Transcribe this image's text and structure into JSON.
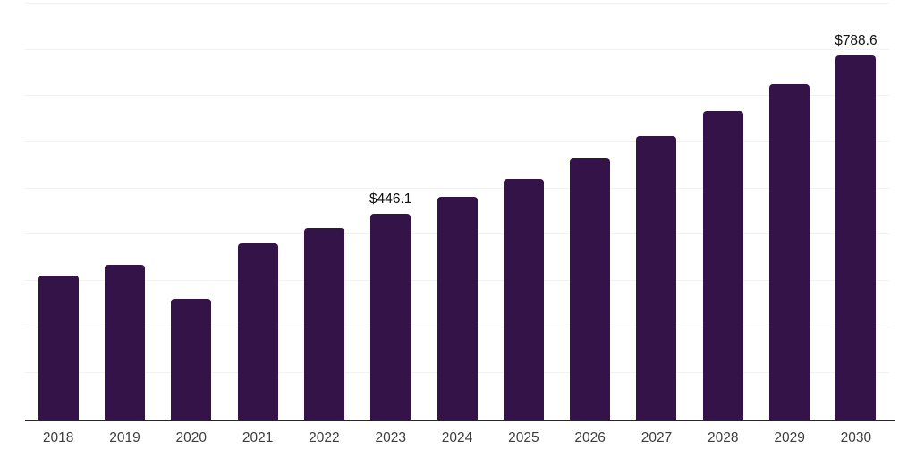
{
  "chart_data": {
    "type": "bar",
    "title": "",
    "xlabel": "",
    "ylabel": "",
    "categories": [
      "2018",
      "2019",
      "2020",
      "2021",
      "2022",
      "2023",
      "2024",
      "2025",
      "2026",
      "2027",
      "2028",
      "2029",
      "2030"
    ],
    "values": [
      310.9,
      335.8,
      261.0,
      381.8,
      414.5,
      446.1,
      481.6,
      520.2,
      566.0,
      614.1,
      667.7,
      725.3,
      788.6
    ],
    "data_labels": [
      null,
      null,
      null,
      null,
      null,
      "$446.1",
      null,
      null,
      null,
      null,
      null,
      null,
      "$788.6"
    ],
    "ylim": [
      0,
      900
    ],
    "gridline_step": 100,
    "grid": true,
    "legend": false,
    "y_axis_tick_labels_visible": false,
    "colors": {
      "bar": "#341349",
      "gridline": "#f2f2f2",
      "axis_line": "#262626",
      "tick_label": "#3d3d3d",
      "data_label": "#111111",
      "background": "#ffffff"
    }
  }
}
